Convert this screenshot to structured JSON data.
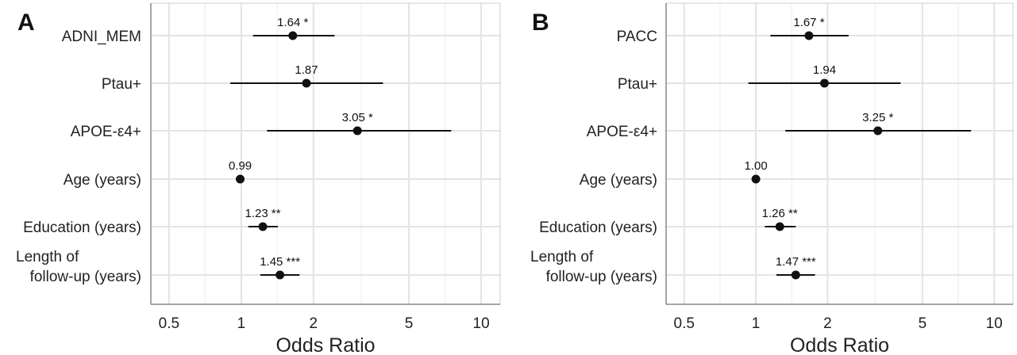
{
  "chart_data": [
    {
      "type": "forest",
      "panel_label": "A",
      "xlabel": "Odds Ratio",
      "x_scale": "log",
      "xlim": [
        0.42,
        12
      ],
      "xticks": [
        0.5,
        1,
        2,
        5,
        10
      ],
      "xtick_labels": [
        "0.5",
        "1",
        "2",
        "5",
        "10"
      ],
      "grid": true,
      "rows": [
        {
          "label": [
            "ADNI_MEM"
          ],
          "or": 1.64,
          "lo": 1.12,
          "hi": 2.45,
          "annotation": "1.64 *"
        },
        {
          "label": [
            "Ptau+"
          ],
          "or": 1.87,
          "lo": 0.9,
          "hi": 3.9,
          "annotation": "1.87"
        },
        {
          "label": [
            "APOE-ε4+"
          ],
          "or": 3.05,
          "lo": 1.28,
          "hi": 7.5,
          "annotation": "3.05 *"
        },
        {
          "label": [
            "Age (years)"
          ],
          "or": 0.99,
          "lo": 0.96,
          "hi": 1.03,
          "annotation": "0.99"
        },
        {
          "label": [
            "Education (years)"
          ],
          "or": 1.23,
          "lo": 1.07,
          "hi": 1.42,
          "annotation": "1.23 **"
        },
        {
          "label": [
            "Length of",
            "follow-up (years)"
          ],
          "or": 1.45,
          "lo": 1.2,
          "hi": 1.75,
          "annotation": "1.45 ***"
        }
      ]
    },
    {
      "type": "forest",
      "panel_label": "B",
      "xlabel": "Odds Ratio",
      "x_scale": "log",
      "xlim": [
        0.42,
        12
      ],
      "xticks": [
        0.5,
        1,
        2,
        5,
        10
      ],
      "xtick_labels": [
        "0.5",
        "1",
        "2",
        "5",
        "10"
      ],
      "grid": true,
      "rows": [
        {
          "label": [
            "PACC"
          ],
          "or": 1.67,
          "lo": 1.15,
          "hi": 2.45,
          "annotation": "1.67 *"
        },
        {
          "label": [
            "Ptau+"
          ],
          "or": 1.94,
          "lo": 0.93,
          "hi": 4.05,
          "annotation": "1.94"
        },
        {
          "label": [
            "APOE-ε4+"
          ],
          "or": 3.25,
          "lo": 1.33,
          "hi": 8.0,
          "annotation": "3.25 *"
        },
        {
          "label": [
            "Age (years)"
          ],
          "or": 1.0,
          "lo": 0.97,
          "hi": 1.04,
          "annotation": "1.00"
        },
        {
          "label": [
            "Education (years)"
          ],
          "or": 1.26,
          "lo": 1.09,
          "hi": 1.47,
          "annotation": "1.26 **"
        },
        {
          "label": [
            "Length of",
            "follow-up (years)"
          ],
          "or": 1.47,
          "lo": 1.22,
          "hi": 1.77,
          "annotation": "1.47 ***"
        }
      ]
    }
  ]
}
